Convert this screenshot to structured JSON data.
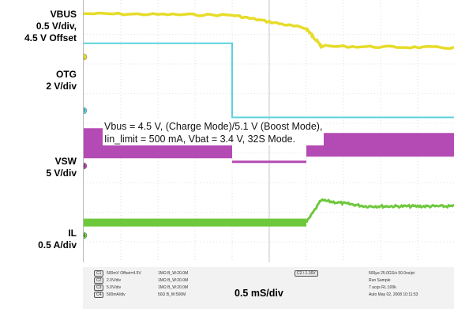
{
  "chart_data": {
    "type": "line",
    "title": "",
    "xlabel": "0.5 mS/div",
    "ylabel": "",
    "grid": true,
    "x_divisions": 10,
    "y_divisions": 8,
    "annotation": [
      "Vbus = 4.5 V, (Charge Mode)/5.1 V (Boost Mode),",
      "Iin_limit = 500 mA, Vbat = 3.4 V, 32S Mode."
    ],
    "channels": [
      {
        "id": "1",
        "name": "VBUS",
        "scale": "0.5 V/div,",
        "offset": "4.5 V Offset",
        "color": "#e6dc2a",
        "events": [
          {
            "t_div": 0,
            "v_div": 0.3
          },
          {
            "t_div": 4,
            "v_div": 0.35
          },
          {
            "t_div": 6,
            "v_div": 0.8
          },
          {
            "t_div": 6.4,
            "v_div": 1.4
          },
          {
            "t_div": 10,
            "v_div": 1.45
          }
        ]
      },
      {
        "id": "2",
        "name": "OTG",
        "scale": "2 V/div",
        "offset": "",
        "color": "#5ad2dc",
        "events": [
          {
            "t_div": 0,
            "v_div": 1.3
          },
          {
            "t_div": 4,
            "v_div": 1.3
          },
          {
            "t_div": 4,
            "v_div": 3.8
          },
          {
            "t_div": 10,
            "v_div": 3.8
          }
        ]
      },
      {
        "id": "3",
        "name": "VSW",
        "scale": "5 V/div",
        "offset": "",
        "color": "#b44bb4",
        "events": [
          {
            "t_div": 0,
            "v_div": 4.7
          },
          {
            "t_div": 4,
            "v_div": 4.7
          },
          {
            "t_div": 4,
            "v_div": 5.3
          },
          {
            "t_div": 6,
            "v_div": 5.3
          },
          {
            "t_div": 6,
            "v_div": 4.7
          },
          {
            "t_div": 10,
            "v_div": 4.7
          }
        ]
      },
      {
        "id": "4",
        "name": "IL",
        "scale": "0.5 A/div",
        "offset": "",
        "color": "#6ec83c",
        "events": [
          {
            "t_div": 0,
            "v_div": 7.35
          },
          {
            "t_div": 4,
            "v_div": 7.35
          },
          {
            "t_div": 6,
            "v_div": 7.35
          },
          {
            "t_div": 6.4,
            "v_div": 6.6
          },
          {
            "t_div": 10,
            "v_div": 6.8
          }
        ]
      }
    ]
  },
  "scope_status": {
    "channels": [
      {
        "id": "C1",
        "text": "500mV  Offset=4.5V",
        "coupling": "1MΩ  B_W:20.0M"
      },
      {
        "id": "C2",
        "text": "2.0V/div",
        "coupling": "1MΩ  B_W:20.0M"
      },
      {
        "id": "C3",
        "text": "5.0V/div",
        "coupling": "1MΩ  B_W:20.0M"
      },
      {
        "id": "C4",
        "text": "500mA/div",
        "coupling": "50Ω  B_W:500M"
      }
    ],
    "trigger": "C2  \\  1.16V",
    "timebase": "0.5 mS/div",
    "acq": [
      "500μs   25.0GS/s   50.0ns/pt",
      "Run        Sample",
      "7 acqs              RL:100k",
      "Auto   May 02, 2008      10:11:53"
    ]
  }
}
